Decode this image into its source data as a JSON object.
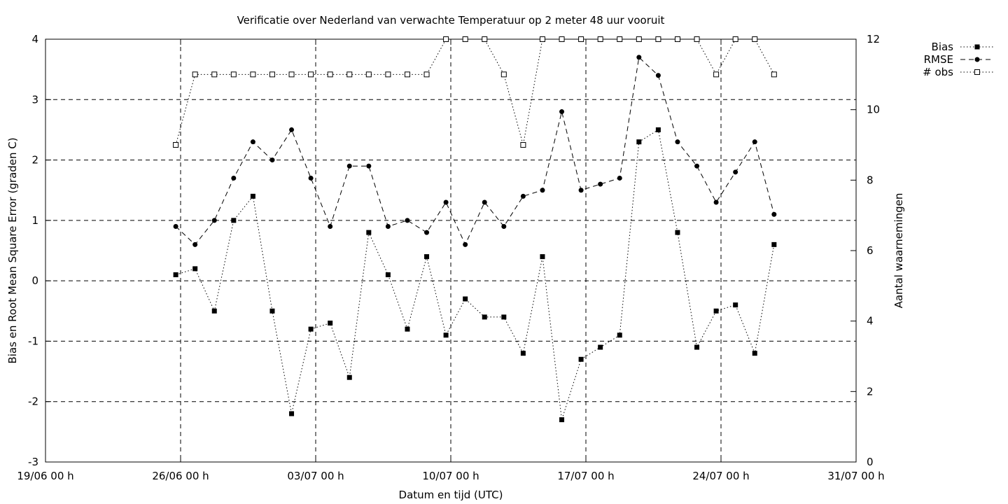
{
  "chart_data": {
    "type": "line",
    "title": "Verificatie over Nederland van verwachte Temperatuur op 2 meter 48 uur vooruit",
    "xlabel": "Datum en tijd (UTC)",
    "ylabel": "Bias en Root Mean Square Error (graden C)",
    "y2label": "Aantal waarnemingen",
    "xlim": [
      0,
      42
    ],
    "ylim": [
      -3,
      4
    ],
    "y2lim": [
      0,
      12
    ],
    "grid": true,
    "legend": "top-right, outside plot",
    "x_ticks": [
      {
        "x": 0,
        "label": "19/06 00 h"
      },
      {
        "x": 7,
        "label": "26/06 00 h"
      },
      {
        "x": 14,
        "label": "03/07 00 h"
      },
      {
        "x": 21,
        "label": "10/07 00 h"
      },
      {
        "x": 28,
        "label": "17/07 00 h"
      },
      {
        "x": 35,
        "label": "24/07 00 h"
      },
      {
        "x": 42,
        "label": "31/07 00 h"
      }
    ],
    "y_ticks": [
      -3,
      -2,
      -1,
      0,
      1,
      2,
      3,
      4
    ],
    "y2_ticks": [
      0,
      2,
      4,
      6,
      8,
      10,
      12
    ],
    "x": [
      6.75,
      7.75,
      8.75,
      9.75,
      10.75,
      11.75,
      12.75,
      13.75,
      14.75,
      15.75,
      16.75,
      17.75,
      18.75,
      19.75,
      20.75,
      21.75,
      22.75,
      23.75,
      24.75,
      25.75,
      26.75,
      27.75,
      28.75,
      29.75,
      30.75,
      31.75,
      32.75,
      33.75,
      34.75,
      35.75,
      36.75,
      37.75
    ],
    "series": [
      {
        "name": "Bias",
        "axis": "y",
        "marker": "filled-square",
        "dash": "dotted",
        "values": [
          0.1,
          0.2,
          -0.5,
          1.0,
          1.4,
          -0.5,
          -2.2,
          -0.8,
          -0.7,
          -1.6,
          0.8,
          0.1,
          -0.8,
          0.4,
          -0.9,
          -0.3,
          -0.6,
          -0.6,
          -1.2,
          0.4,
          -2.3,
          -1.3,
          -1.1,
          -0.9,
          2.3,
          2.5,
          0.8,
          -1.1,
          -0.5,
          -0.4,
          -1.2,
          0.6
        ]
      },
      {
        "name": "RMSE",
        "axis": "y",
        "marker": "filled-circle",
        "dash": "dashed",
        "values": [
          0.9,
          0.6,
          1.0,
          1.7,
          2.3,
          2.0,
          2.5,
          1.7,
          0.9,
          1.9,
          1.9,
          0.9,
          1.0,
          0.8,
          1.3,
          0.6,
          1.3,
          0.9,
          1.4,
          1.5,
          2.8,
          1.5,
          1.6,
          1.7,
          3.7,
          3.4,
          2.3,
          1.9,
          1.3,
          1.8,
          2.3,
          1.1
        ]
      },
      {
        "name": "# obs",
        "axis": "y2",
        "marker": "open-square",
        "dash": "dotted",
        "values": [
          9,
          11,
          11,
          11,
          11,
          11,
          11,
          11,
          11,
          11,
          11,
          11,
          11,
          11,
          12,
          12,
          12,
          11,
          9,
          12,
          12,
          12,
          12,
          12,
          12,
          12,
          12,
          12,
          11,
          12,
          12,
          11
        ]
      }
    ]
  }
}
